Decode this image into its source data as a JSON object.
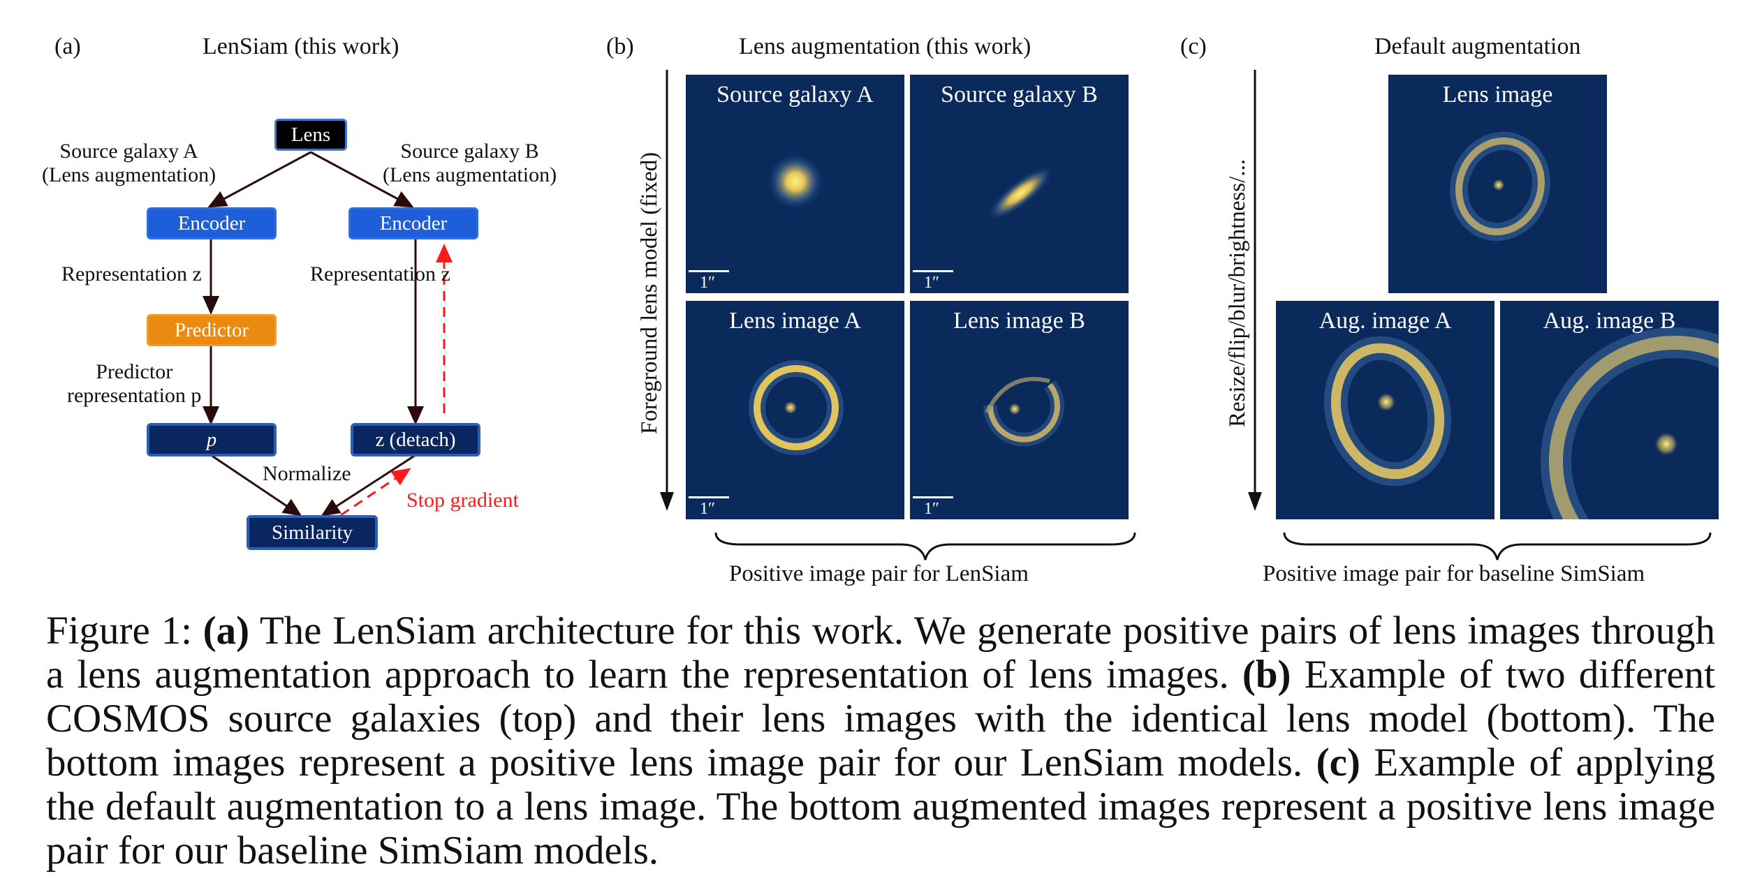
{
  "panel_a": {
    "label": "(a)",
    "title": "LenSiam (this work)",
    "lens_box": "Lens",
    "left_branch_label_1": "Source galaxy A",
    "left_branch_label_2": "(Lens augmentation)",
    "right_branch_label_1": "Source galaxy B",
    "right_branch_label_2": "(Lens augmentation)",
    "encoder_left": "Encoder",
    "encoder_right": "Encoder",
    "representation_left": "Representation z",
    "representation_right": "Representation z",
    "predictor": "Predictor",
    "predictor_rep_1": "Predictor",
    "predictor_rep_2": "representation p",
    "p_box": "p",
    "z_detach_box": "z (detach)",
    "normalize": "Normalize",
    "stop_gradient": "Stop gradient",
    "similarity": "Similarity",
    "colors": {
      "encoder": "#1e5fd9",
      "predictor": "#ea8a10",
      "navy": "#0a2660",
      "stop": "#ff1a1a"
    }
  },
  "panel_b": {
    "label": "(b)",
    "title": "Lens augmentation (this work)",
    "axis_label": "Foreground lens model (fixed)",
    "images": [
      "Source galaxy A",
      "Source galaxy B",
      "Lens image A",
      "Lens image B"
    ],
    "scale_label": "1″",
    "brace_label": "Positive image pair for LenSiam"
  },
  "panel_c": {
    "label": "(c)",
    "title": "Default augmentation",
    "axis_label": "Resize/flip/blur/brightness/...",
    "images": [
      "Lens image",
      "Aug. image A",
      "Aug. image B"
    ],
    "brace_label": "Positive image pair for baseline SimSiam"
  },
  "caption": {
    "prefix": "Figure 1: ",
    "a_tag": "(a)",
    "a_text": " The LenSiam architecture for this work. We generate positive pairs of lens images through a lens augmentation approach to learn the representation of lens images. ",
    "b_tag": "(b)",
    "b_text": " Example of two different COSMOS source galaxies (top) and their lens images with the identical lens model (bottom). The bottom images represent a positive lens image pair for our LenSiam models. ",
    "c_tag": "(c)",
    "c_text": " Example of applying the default augmentation to a lens image. The bottom augmented images represent a positive lens image pair for our baseline SimSiam models."
  }
}
